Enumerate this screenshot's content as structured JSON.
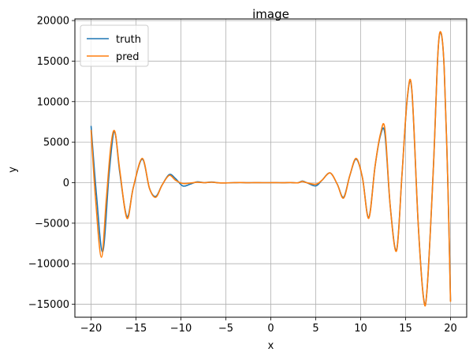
{
  "chart_data": {
    "type": "line",
    "title": "image",
    "xlabel": "x",
    "ylabel": "y",
    "xlim": [
      -21.8,
      21.8
    ],
    "ylim": [
      -16600,
      20200
    ],
    "xticks": [
      -20,
      -15,
      -10,
      -5,
      0,
      5,
      10,
      15,
      20
    ],
    "xtick_labels": [
      "−20",
      "−15",
      "−10",
      "−5",
      "0",
      "5",
      "10",
      "15",
      "20"
    ],
    "yticks": [
      -15000,
      -10000,
      -5000,
      0,
      5000,
      10000,
      15000,
      20000
    ],
    "ytick_labels": [
      "−15000",
      "−10000",
      "−5000",
      "0",
      "5000",
      "10000",
      "15000",
      "20000"
    ],
    "grid": true,
    "legend_position": "upper-left",
    "series": [
      {
        "name": "truth",
        "color": "#1f77b4",
        "x": [
          -20,
          -19.4,
          -18.7,
          -18.0,
          -17.4,
          -16.8,
          -16.0,
          -15.3,
          -14.3,
          -13.5,
          -12.8,
          -12.1,
          -11.3,
          -10.6,
          -9.8,
          -9.0,
          -8.2,
          -7.4,
          -6.6,
          -5.8,
          -5.0,
          -4.2,
          -3.4,
          -2.6,
          -1.8,
          -1.0,
          -0.2,
          0.6,
          1.4,
          2.2,
          3.0,
          3.5,
          4.0,
          5.0,
          5.7,
          6.6,
          7.4,
          8.1,
          8.8,
          9.5,
          10.2,
          10.9,
          11.6,
          12.2,
          12.7,
          13.3,
          14.0,
          14.6,
          15.2,
          15.7,
          16.4,
          17.0,
          17.4,
          18.1,
          18.6,
          18.95,
          19.3,
          19.7,
          20.0
        ],
        "y": [
          7000,
          -1500,
          -8500,
          1000,
          6300,
          1200,
          -4200,
          -600,
          2900,
          -700,
          -1700,
          -300,
          1000,
          500,
          -400,
          -200,
          100,
          0,
          80,
          -20,
          -30,
          0,
          20,
          -10,
          10,
          0,
          0,
          10,
          -10,
          20,
          -20,
          200,
          0,
          -400,
          300,
          1200,
          -200,
          -1800,
          900,
          2900,
          600,
          -4300,
          2000,
          5800,
          6000,
          -3000,
          -8300,
          1000,
          10500,
          11300,
          -5000,
          -14200,
          -13000,
          2000,
          16000,
          18400,
          14000,
          0,
          -14600
        ]
      },
      {
        "name": "pred",
        "color": "#ff7f0e",
        "x": [
          -20,
          -19.5,
          -18.85,
          -18.3,
          -17.8,
          -17.35,
          -16.8,
          -16.0,
          -15.3,
          -14.3,
          -13.5,
          -12.8,
          -12.1,
          -11.3,
          -10.6,
          -9.8,
          -9.0,
          -8.2,
          -7.4,
          -6.6,
          -5.8,
          -5.0,
          -4.2,
          -3.4,
          -2.6,
          -1.8,
          -1.0,
          -0.2,
          0.6,
          1.4,
          2.2,
          3.0,
          3.5,
          4.0,
          5.0,
          5.7,
          6.6,
          7.4,
          8.1,
          8.8,
          9.5,
          10.2,
          10.9,
          11.6,
          12.2,
          12.7,
          13.3,
          14.0,
          14.6,
          15.2,
          15.7,
          16.4,
          17.0,
          17.4,
          18.1,
          18.6,
          18.95,
          19.3,
          19.7,
          20.0
        ],
        "y": [
          6500,
          -2000,
          -9200,
          -2000,
          4500,
          6300,
          1500,
          -4400,
          -600,
          3000,
          -700,
          -1800,
          -300,
          900,
          300,
          -100,
          -50,
          50,
          0,
          60,
          -20,
          -30,
          0,
          20,
          -10,
          10,
          0,
          0,
          10,
          -10,
          20,
          -20,
          150,
          0,
          -200,
          300,
          1200,
          -200,
          -1900,
          900,
          3000,
          600,
          -4400,
          2000,
          6000,
          6600,
          -3000,
          -8400,
          1000,
          10600,
          11400,
          -5000,
          -14300,
          -13000,
          2000,
          16000,
          18500,
          14000,
          0,
          -14700
        ]
      }
    ]
  }
}
